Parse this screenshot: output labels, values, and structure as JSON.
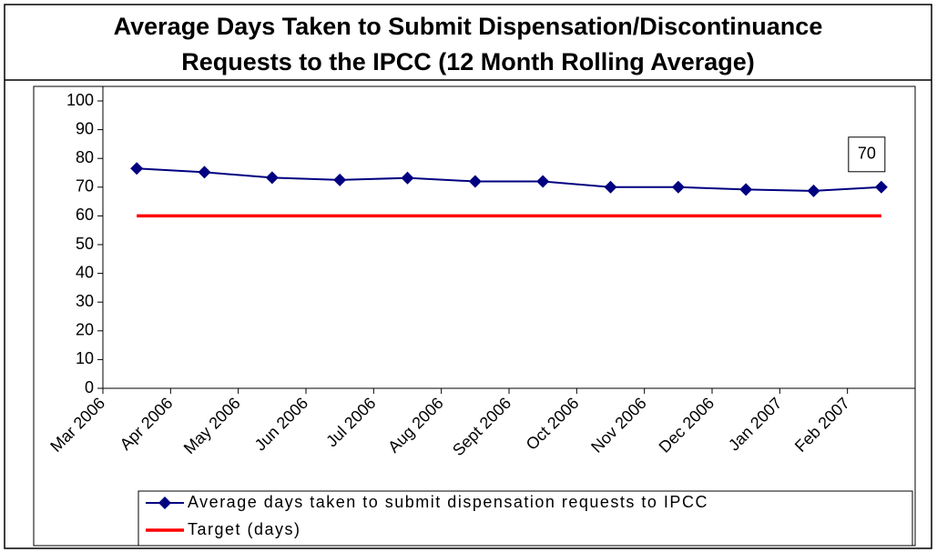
{
  "chart_data": {
    "type": "line",
    "title": [
      "Average Days Taken to Submit Dispensation/Discontinuance",
      "Requests to the IPCC (12 Month Rolling Average)"
    ],
    "categories": [
      "Mar 2006",
      "Apr 2006",
      "May 2006",
      "Jun 2006",
      "Jul 2006",
      "Aug 2006",
      "Sept 2006",
      "Oct 2006",
      "Nov 2006",
      "Dec 2006",
      "Jan 2007",
      "Feb 2007"
    ],
    "series": [
      {
        "name": "Average days taken to submit dispensation requests to IPCC",
        "color": "#000080",
        "marker": "diamond",
        "values": [
          76.5,
          75.2,
          73.3,
          72.5,
          73.2,
          72,
          72,
          70,
          70,
          69.2,
          68.7,
          70
        ]
      },
      {
        "name": "Target (days)",
        "color": "#ff0000",
        "values": [
          60,
          60,
          60,
          60,
          60,
          60,
          60,
          60,
          60,
          60,
          60,
          60
        ]
      }
    ],
    "ylim": [
      0,
      100
    ],
    "yticks": [
      0,
      10,
      20,
      30,
      40,
      50,
      60,
      70,
      80,
      90,
      100
    ],
    "legend": "bottom"
  }
}
